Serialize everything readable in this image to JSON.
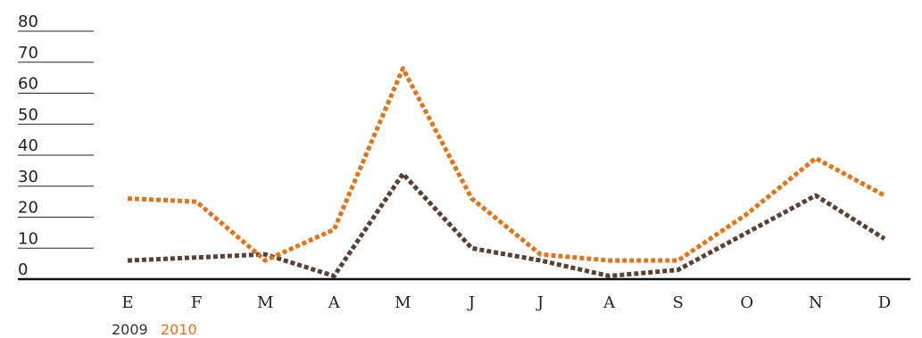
{
  "chart_data": {
    "type": "line",
    "categories": [
      "E",
      "F",
      "M",
      "A",
      "M",
      "J",
      "J",
      "A",
      "S",
      "O",
      "N",
      "D"
    ],
    "series": [
      {
        "name": "2009",
        "color": "#5a4032",
        "values": [
          6,
          7,
          8,
          1,
          34,
          10,
          6,
          1,
          3,
          15,
          27,
          13
        ]
      },
      {
        "name": "2010",
        "color": "#e07418",
        "values": [
          26,
          25,
          6,
          16,
          68,
          26,
          8,
          6,
          6,
          21,
          39,
          27
        ]
      }
    ],
    "yticks": [
      0,
      10,
      20,
      30,
      40,
      50,
      60,
      70,
      80
    ],
    "ylim": [
      0,
      80
    ],
    "line_style": "dotted",
    "legend_position": "bottom-left",
    "title": "",
    "xlabel": "",
    "ylabel": ""
  }
}
